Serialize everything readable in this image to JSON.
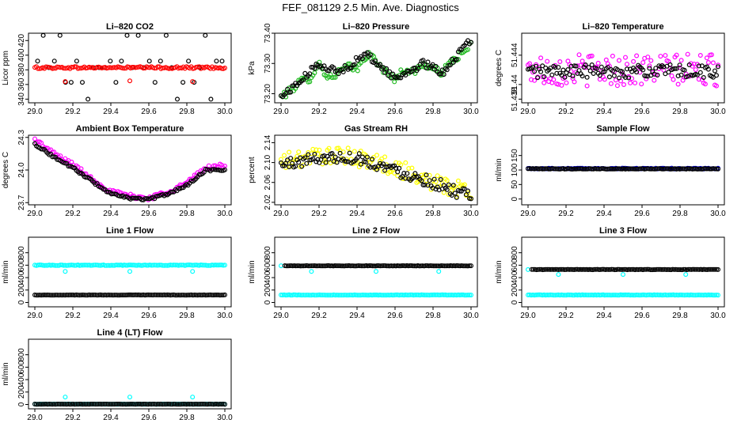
{
  "main_title": "FEF_081129  2.5 Min. Ave. Diagnostics",
  "colors": {
    "black": "#000000",
    "red": "#ff0000",
    "green": "#22bb22",
    "magenta": "#ff00ff",
    "yellow": "#ffff00",
    "cyan": "#00ffff",
    "blue": "#0000cc"
  },
  "chart_data": [
    {
      "id": "co2",
      "type": "scatter",
      "title": "Li–820 CO2",
      "ylabel": "Licor ppm",
      "xlim": [
        29.0,
        30.0
      ],
      "ylim": [
        335,
        430
      ],
      "xticks": [
        "29.0",
        "29.2",
        "29.4",
        "29.6",
        "29.8",
        "30.0"
      ],
      "yticks": [
        340,
        360,
        380,
        400,
        420
      ],
      "series": [
        {
          "name": "black",
          "color": "#000000",
          "mode": "levels",
          "levels": [
            340,
            363,
            383,
            392,
            427
          ],
          "noise": 0
        },
        {
          "name": "red",
          "color": "#ff0000",
          "mode": "band",
          "value": 383,
          "noise": 1.5,
          "outliers": [
            [
              29.16,
              364
            ],
            [
              29.5,
              365
            ],
            [
              29.83,
              364
            ]
          ]
        }
      ]
    },
    {
      "id": "pressure",
      "type": "scatter",
      "title": "Li–820 Pressure",
      "ylabel": "kPa",
      "xlim": [
        29.0,
        30.0
      ],
      "ylim": [
        73.17,
        73.4
      ],
      "xticks": [
        "29.0",
        "29.2",
        "29.4",
        "29.6",
        "29.8",
        "30.0"
      ],
      "yticks": [
        "73.20",
        "73.30",
        "73.40"
      ],
      "series": [
        {
          "name": "green",
          "color": "#22bb22",
          "mode": "track",
          "track": [
            [
              29.0,
              73.19
            ],
            [
              29.05,
              73.21
            ],
            [
              29.1,
              73.24
            ],
            [
              29.15,
              73.25
            ],
            [
              29.2,
              73.3
            ],
            [
              29.25,
              73.25
            ],
            [
              29.3,
              73.27
            ],
            [
              29.35,
              73.29
            ],
            [
              29.4,
              73.28
            ],
            [
              29.45,
              73.33
            ],
            [
              29.5,
              73.31
            ],
            [
              29.55,
              73.27
            ],
            [
              29.6,
              73.25
            ],
            [
              29.65,
              73.28
            ],
            [
              29.7,
              73.27
            ],
            [
              29.75,
              73.3
            ],
            [
              29.8,
              73.28
            ],
            [
              29.85,
              73.27
            ],
            [
              29.9,
              73.31
            ],
            [
              29.95,
              73.33
            ],
            [
              30.0,
              73.36
            ]
          ],
          "noise": 0.012
        },
        {
          "name": "black",
          "color": "#000000",
          "mode": "track",
          "track": [
            [
              29.0,
              73.19
            ],
            [
              29.1,
              73.24
            ],
            [
              29.2,
              73.3
            ],
            [
              29.3,
              73.27
            ],
            [
              29.45,
              73.33
            ],
            [
              29.6,
              73.25
            ],
            [
              29.75,
              73.3
            ],
            [
              29.85,
              73.27
            ],
            [
              30.0,
              73.38
            ]
          ],
          "noise": 0.012
        }
      ]
    },
    {
      "id": "li_temp",
      "type": "scatter",
      "title": "Li–820 Temperature",
      "ylabel": "degrees C",
      "xlim": [
        29.0,
        30.0
      ],
      "ylim": [
        51.4375,
        51.447
      ],
      "xticks": [
        "29.0",
        "29.2",
        "29.4",
        "29.6",
        "29.8",
        "30.0"
      ],
      "yticks": [
        "51.438",
        "51.44",
        "51.444"
      ],
      "series": [
        {
          "name": "magenta",
          "color": "#ff00ff",
          "mode": "band",
          "value": 51.442,
          "noise": 0.0022
        },
        {
          "name": "black",
          "color": "#000000",
          "mode": "band",
          "value": 51.4418,
          "noise": 0.0009
        }
      ]
    },
    {
      "id": "box_temp",
      "type": "scatter",
      "title": "Ambient Box Temperature",
      "ylabel": "degrees C",
      "xlim": [
        29.0,
        30.0
      ],
      "ylim": [
        23.68,
        24.32
      ],
      "xticks": [
        "29.0",
        "29.2",
        "29.4",
        "29.6",
        "29.8",
        "30.0"
      ],
      "yticks": [
        "23.7",
        "24.0",
        "24.3"
      ],
      "series": [
        {
          "name": "magenta",
          "color": "#ff00ff",
          "mode": "track",
          "track": [
            [
              29.0,
              24.28
            ],
            [
              29.1,
              24.15
            ],
            [
              29.2,
              24.05
            ],
            [
              29.3,
              23.92
            ],
            [
              29.4,
              23.8
            ],
            [
              29.5,
              23.76
            ],
            [
              29.6,
              23.74
            ],
            [
              29.7,
              23.8
            ],
            [
              29.8,
              23.88
            ],
            [
              29.9,
              24.02
            ],
            [
              30.0,
              24.04
            ]
          ],
          "noise": 0.02
        },
        {
          "name": "black",
          "color": "#000000",
          "mode": "track",
          "track": [
            [
              29.0,
              24.24
            ],
            [
              29.1,
              24.12
            ],
            [
              29.2,
              24.02
            ],
            [
              29.3,
              23.9
            ],
            [
              29.4,
              23.78
            ],
            [
              29.5,
              23.74
            ],
            [
              29.6,
              23.73
            ],
            [
              29.7,
              23.78
            ],
            [
              29.8,
              23.86
            ],
            [
              29.9,
              24.0
            ],
            [
              30.0,
              24.0
            ]
          ],
          "noise": 0.01
        }
      ]
    },
    {
      "id": "rh",
      "type": "scatter",
      "title": "Gas Stream RH",
      "ylabel": "percent",
      "xlim": [
        29.0,
        30.0
      ],
      "ylim": [
        2.015,
        2.155
      ],
      "xticks": [
        "29.0",
        "29.2",
        "29.4",
        "29.6",
        "29.8",
        "30.0"
      ],
      "yticks": [
        "2.02",
        "2.06",
        "2.10",
        "2.14"
      ],
      "series": [
        {
          "name": "yellow",
          "color": "#ffff00",
          "mode": "track",
          "track": [
            [
              29.0,
              2.1
            ],
            [
              29.2,
              2.115
            ],
            [
              29.4,
              2.11
            ],
            [
              29.6,
              2.09
            ],
            [
              29.8,
              2.06
            ],
            [
              30.0,
              2.04
            ]
          ],
          "noise": 0.018
        },
        {
          "name": "black",
          "color": "#000000",
          "mode": "track",
          "track": [
            [
              29.0,
              2.095
            ],
            [
              29.2,
              2.11
            ],
            [
              29.4,
              2.11
            ],
            [
              29.6,
              2.085
            ],
            [
              29.8,
              2.06
            ],
            [
              30.0,
              2.03
            ]
          ],
          "noise": 0.012
        }
      ]
    },
    {
      "id": "sample_flow",
      "type": "scatter",
      "title": "Sample Flow",
      "ylabel": "ml/min",
      "xlim": [
        29.0,
        30.0
      ],
      "ylim": [
        -20,
        220
      ],
      "xticks": [
        "29.0",
        "29.2",
        "29.4",
        "29.6",
        "29.8",
        "30.0"
      ],
      "yticks": [
        0,
        50,
        100,
        150
      ],
      "series": [
        {
          "name": "blue",
          "color": "#0000cc",
          "mode": "band",
          "value": 105,
          "noise": 1.5
        },
        {
          "name": "black",
          "color": "#000000",
          "mode": "band",
          "value": 104,
          "noise": 1
        }
      ]
    },
    {
      "id": "line1",
      "type": "scatter",
      "title": "Line 1 Flow",
      "ylabel": "ml/min",
      "xlim": [
        29.0,
        30.0
      ],
      "ylim": [
        -70,
        1050
      ],
      "xticks": [
        "29.0",
        "29.2",
        "29.4",
        "29.6",
        "29.8",
        "30.0"
      ],
      "yticks": [
        0,
        200,
        400,
        600,
        800
      ],
      "series": [
        {
          "name": "cyan",
          "color": "#00ffff",
          "mode": "band",
          "value": 600,
          "noise": 5,
          "outliers": [
            [
              29.16,
              500
            ],
            [
              29.5,
              500
            ],
            [
              29.83,
              500
            ]
          ]
        },
        {
          "name": "black",
          "color": "#000000",
          "mode": "band",
          "value": 120,
          "noise": 2
        }
      ]
    },
    {
      "id": "line2",
      "type": "scatter",
      "title": "Line 2 Flow",
      "ylabel": "ml/min",
      "xlim": [
        29.0,
        30.0
      ],
      "ylim": [
        -70,
        1050
      ],
      "xticks": [
        "29.0",
        "29.2",
        "29.4",
        "29.6",
        "29.8",
        "30.0"
      ],
      "yticks": [
        0,
        200,
        400,
        600,
        800
      ],
      "series": [
        {
          "name": "cyan",
          "color": "#00ffff",
          "mode": "band",
          "value": 120,
          "noise": 3,
          "outliers": [
            [
              29.0,
              590
            ],
            [
              29.16,
              500
            ],
            [
              29.5,
              500
            ],
            [
              29.83,
              500
            ]
          ]
        },
        {
          "name": "black",
          "color": "#000000",
          "mode": "band",
          "value": 590,
          "noise": 3,
          "xstart": 29.02
        }
      ]
    },
    {
      "id": "line3",
      "type": "scatter",
      "title": "Line 3 Flow",
      "ylabel": "ml/min",
      "xlim": [
        29.0,
        30.0
      ],
      "ylim": [
        -70,
        1050
      ],
      "xticks": [
        "29.0",
        "29.2",
        "29.4",
        "29.6",
        "29.8",
        "30.0"
      ],
      "yticks": [
        0,
        200,
        400,
        600,
        800
      ],
      "series": [
        {
          "name": "cyan",
          "color": "#00ffff",
          "mode": "band",
          "value": 120,
          "noise": 3,
          "outliers": [
            [
              29.0,
              530
            ],
            [
              29.16,
              450
            ],
            [
              29.5,
              450
            ],
            [
              29.83,
              450
            ]
          ]
        },
        {
          "name": "black",
          "color": "#000000",
          "mode": "band",
          "value": 530,
          "noise": 3,
          "xstart": 29.02
        }
      ]
    },
    {
      "id": "line4",
      "type": "scatter",
      "title": "Line 4 (LT) Flow",
      "ylabel": "ml/min",
      "xlim": [
        29.0,
        30.0
      ],
      "ylim": [
        -70,
        1050
      ],
      "xticks": [
        "29.0",
        "29.2",
        "29.4",
        "29.6",
        "29.8",
        "30.0"
      ],
      "yticks": [
        0,
        200,
        400,
        600,
        800
      ],
      "series": [
        {
          "name": "cyan",
          "color": "#00ffff",
          "mode": "band",
          "value": 5,
          "noise": 2,
          "outliers": [
            [
              29.16,
              120
            ],
            [
              29.5,
              120
            ],
            [
              29.83,
              120
            ]
          ]
        },
        {
          "name": "black",
          "color": "#000000",
          "mode": "band",
          "value": 5,
          "noise": 2
        }
      ]
    }
  ]
}
